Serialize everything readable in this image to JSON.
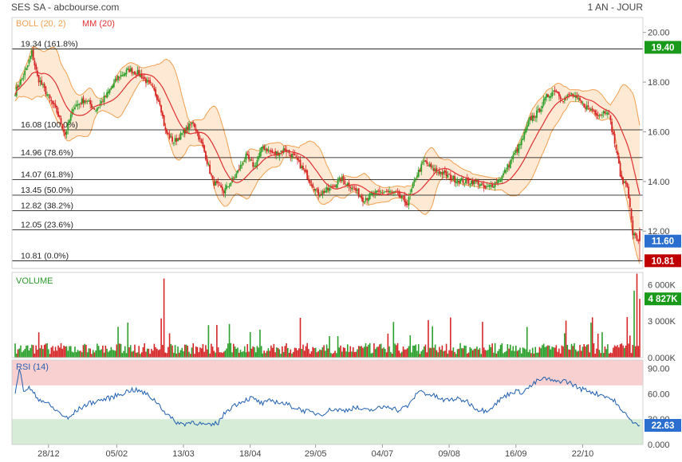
{
  "header": {
    "title": "SES SA - abcbourse.com",
    "timeframe": "1 AN - JOUR"
  },
  "colors": {
    "bg": "#ffffff",
    "axis": "#d0d0d0",
    "text": "#333333",
    "boll_fill": "#fde9d4",
    "boll_line": "#f0a050",
    "ma": "#e03030",
    "candle_up": "#2ca02c",
    "candle_down": "#d62728",
    "fib_line": "#000000",
    "rsi_line": "#1f5fb0",
    "rsi_over": "#f9d0d0",
    "rsi_under": "#d6ecd6",
    "badge_green": "#1a9a1a",
    "badge_red": "#c00000",
    "badge_blue": "#2a6fd0"
  },
  "chart_data": [
    {
      "type": "candlestick",
      "legend": [
        {
          "name": "BOLL (20, 2)",
          "color": "#f0a050"
        },
        {
          "name": "MM (20)",
          "color": "#e03030"
        }
      ],
      "ylim": [
        10.5,
        20.6
      ],
      "y_ticks": [
        "20.00",
        "18.00",
        "16.00",
        "14.00",
        "12.00"
      ],
      "x_labels": [
        "28/12",
        "05/02",
        "13/03",
        "18/04",
        "29/05",
        "04/07",
        "09/08",
        "16/09",
        "22/10"
      ],
      "fibonacci": [
        {
          "label": "19.34  (161.8%)",
          "value": 19.34
        },
        {
          "label": "16.08  (100.0%)",
          "value": 16.08
        },
        {
          "label": "14.96  (78.6%)",
          "value": 14.96
        },
        {
          "label": "14.07  (61.8%)",
          "value": 14.07
        },
        {
          "label": "13.45  (50.0%)",
          "value": 13.45
        },
        {
          "label": "12.82  (38.2%)",
          "value": 12.82
        },
        {
          "label": "12.05  (23.6%)",
          "value": 12.05
        },
        {
          "label": "10.81  (0.0%)",
          "value": 10.81
        }
      ],
      "badges": [
        {
          "text": "19.40",
          "value": 19.4,
          "kind": "green"
        },
        {
          "text": "11.60",
          "value": 11.6,
          "kind": "blue"
        },
        {
          "text": "10.81",
          "value": 10.81,
          "kind": "red"
        }
      ],
      "close_anchors": [
        [
          0,
          17.6
        ],
        [
          8,
          18.5
        ],
        [
          12,
          19.2
        ],
        [
          16,
          18.2
        ],
        [
          24,
          17.4
        ],
        [
          30,
          16.8
        ],
        [
          36,
          15.9
        ],
        [
          42,
          17.0
        ],
        [
          50,
          17.3
        ],
        [
          58,
          16.9
        ],
        [
          66,
          17.5
        ],
        [
          74,
          18.2
        ],
        [
          82,
          18.5
        ],
        [
          90,
          18.3
        ],
        [
          98,
          17.8
        ],
        [
          104,
          17.2
        ],
        [
          108,
          16.0
        ],
        [
          114,
          15.6
        ],
        [
          120,
          15.9
        ],
        [
          128,
          16.4
        ],
        [
          136,
          15.2
        ],
        [
          142,
          14.0
        ],
        [
          150,
          13.6
        ],
        [
          158,
          14.2
        ],
        [
          166,
          15.0
        ],
        [
          172,
          14.6
        ],
        [
          178,
          15.4
        ],
        [
          186,
          15.1
        ],
        [
          194,
          15.3
        ],
        [
          202,
          14.9
        ],
        [
          210,
          14.2
        ],
        [
          218,
          13.5
        ],
        [
          226,
          13.7
        ],
        [
          234,
          14.1
        ],
        [
          242,
          13.8
        ],
        [
          250,
          13.3
        ],
        [
          258,
          13.5
        ],
        [
          266,
          13.6
        ],
        [
          274,
          13.5
        ],
        [
          282,
          13.1
        ],
        [
          288,
          14.2
        ],
        [
          294,
          14.8
        ],
        [
          300,
          14.5
        ],
        [
          308,
          14.3
        ],
        [
          316,
          14.1
        ],
        [
          324,
          14.0
        ],
        [
          332,
          14.0
        ],
        [
          338,
          13.7
        ],
        [
          344,
          13.9
        ],
        [
          350,
          14.2
        ],
        [
          358,
          15.0
        ],
        [
          364,
          15.6
        ],
        [
          370,
          16.5
        ],
        [
          376,
          16.8
        ],
        [
          382,
          17.4
        ],
        [
          388,
          17.7
        ],
        [
          394,
          17.3
        ],
        [
          400,
          17.5
        ],
        [
          408,
          17.1
        ],
        [
          414,
          16.9
        ],
        [
          420,
          16.7
        ],
        [
          426,
          16.9
        ],
        [
          432,
          15.3
        ],
        [
          436,
          14.0
        ],
        [
          440,
          13.9
        ],
        [
          444,
          11.9
        ],
        [
          448,
          11.6
        ]
      ]
    },
    {
      "type": "bar",
      "title": "VOLUME",
      "y_ticks": [
        "6 000K",
        "3 000K",
        "0.000K"
      ],
      "ylim": [
        0,
        7000
      ],
      "last_value": "4 827K",
      "last_raw": 4827
    },
    {
      "type": "line",
      "title": "RSI (14)",
      "ylim": [
        0,
        100
      ],
      "y_ticks": [
        "90.00",
        "60.00",
        "30.00",
        "0.000"
      ],
      "overbought": 70,
      "oversold": 30,
      "last_value": "22.63",
      "last_raw": 22.63,
      "anchors": [
        [
          0,
          62
        ],
        [
          3,
          90
        ],
        [
          6,
          64
        ],
        [
          10,
          67
        ],
        [
          16,
          55
        ],
        [
          22,
          50
        ],
        [
          28,
          42
        ],
        [
          34,
          35
        ],
        [
          38,
          30
        ],
        [
          44,
          40
        ],
        [
          52,
          48
        ],
        [
          60,
          52
        ],
        [
          68,
          55
        ],
        [
          76,
          60
        ],
        [
          84,
          65
        ],
        [
          90,
          63
        ],
        [
          96,
          58
        ],
        [
          102,
          50
        ],
        [
          108,
          38
        ],
        [
          114,
          28
        ],
        [
          120,
          24
        ],
        [
          128,
          27
        ],
        [
          134,
          24
        ],
        [
          140,
          22
        ],
        [
          146,
          26
        ],
        [
          152,
          40
        ],
        [
          158,
          47
        ],
        [
          164,
          52
        ],
        [
          170,
          55
        ],
        [
          178,
          48
        ],
        [
          184,
          52
        ],
        [
          190,
          50
        ],
        [
          196,
          47
        ],
        [
          204,
          42
        ],
        [
          212,
          38
        ],
        [
          220,
          36
        ],
        [
          228,
          42
        ],
        [
          236,
          40
        ],
        [
          244,
          44
        ],
        [
          252,
          40
        ],
        [
          260,
          42
        ],
        [
          268,
          46
        ],
        [
          276,
          40
        ],
        [
          284,
          48
        ],
        [
          290,
          64
        ],
        [
          296,
          60
        ],
        [
          302,
          57
        ],
        [
          308,
          52
        ],
        [
          316,
          54
        ],
        [
          324,
          52
        ],
        [
          332,
          42
        ],
        [
          338,
          40
        ],
        [
          344,
          46
        ],
        [
          350,
          55
        ],
        [
          358,
          63
        ],
        [
          364,
          62
        ],
        [
          370,
          68
        ],
        [
          376,
          76
        ],
        [
          382,
          78
        ],
        [
          388,
          74
        ],
        [
          394,
          76
        ],
        [
          400,
          72
        ],
        [
          406,
          66
        ],
        [
          412,
          64
        ],
        [
          418,
          60
        ],
        [
          424,
          58
        ],
        [
          432,
          50
        ],
        [
          436,
          38
        ],
        [
          440,
          36
        ],
        [
          444,
          25
        ],
        [
          448,
          22.63
        ]
      ]
    }
  ]
}
